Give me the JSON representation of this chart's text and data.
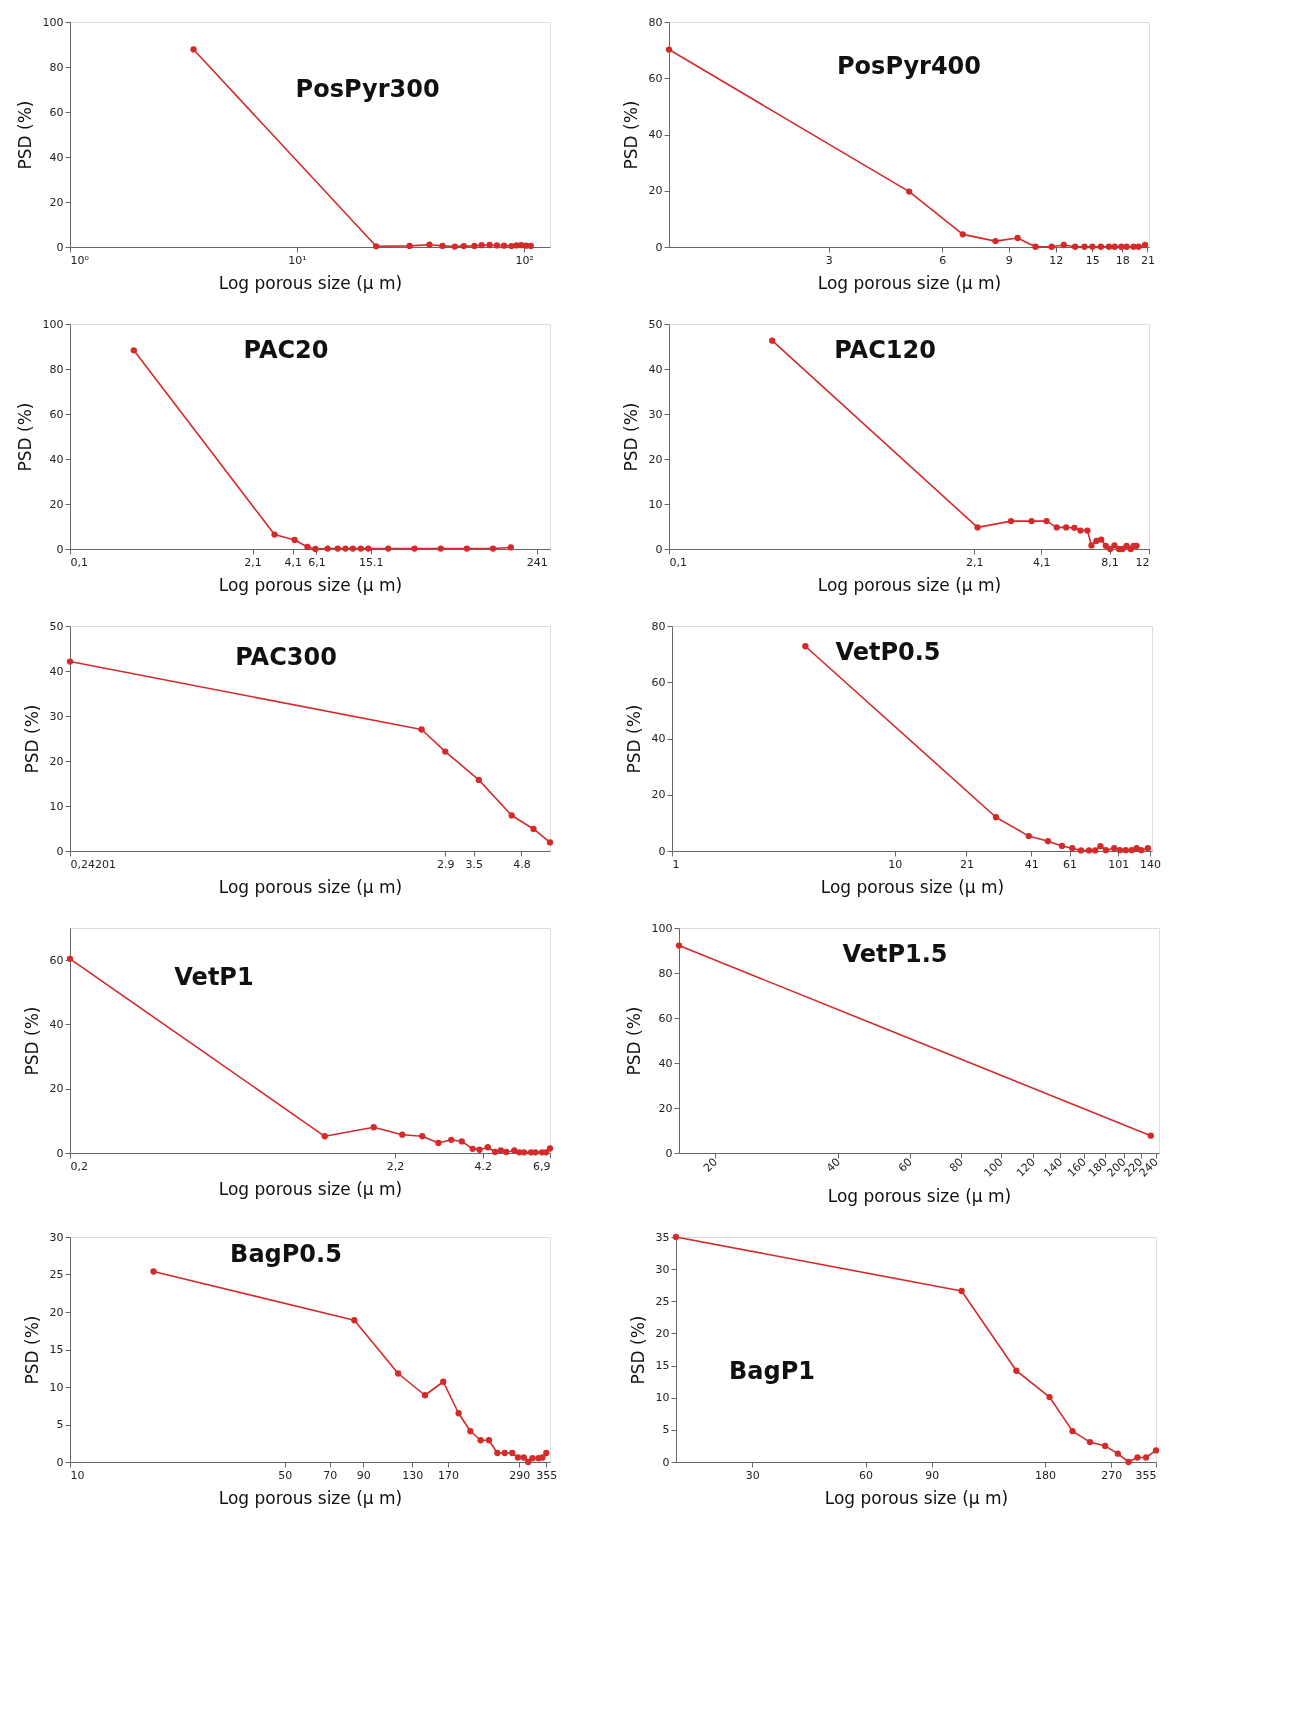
{
  "chart_data": [
    {
      "type": "line",
      "title": "PosPyr300",
      "xlabel": "Log porous size (μ m)",
      "ylabel": "PSD (%)",
      "log": "x",
      "marker": "circle",
      "xlim": [
        1,
        130
      ],
      "xticks": [
        {
          "value": 1,
          "label": "10⁰"
        },
        {
          "value": 10,
          "label": "10¹"
        },
        {
          "value": 100,
          "label": "10²"
        }
      ],
      "ylim": [
        0,
        100
      ],
      "yticks": [
        0,
        20,
        40,
        60,
        80,
        100
      ],
      "x": [
        3.5,
        22.3,
        31.3,
        38.3,
        43.7,
        49.5,
        54.2,
        60.4,
        65,
        70.5,
        75.9,
        81.6,
        87.9,
        92.5,
        97,
        102,
        107
      ],
      "series": [
        {
          "color": "#d42a2a",
          "values": [
            87.8,
            0.3,
            0.5,
            1.0,
            0.5,
            0.2,
            0.4,
            0.5,
            0.8,
            0.9,
            0.7,
            0.6,
            0.4,
            0.7,
            0.8,
            0.6,
            0.5
          ]
        }
      ]
    },
    {
      "type": "line",
      "title": "PosPyr400",
      "xlabel": "Log porous size (μ m)",
      "ylabel": "PSD (%)",
      "log": "x",
      "marker": "circle",
      "xlim": [
        1.13,
        21.2
      ],
      "xticks": [
        3,
        6,
        9,
        12,
        15,
        18,
        21
      ],
      "ylim": [
        0,
        80
      ],
      "yticks": [
        0,
        20,
        40,
        60,
        80
      ],
      "x": [
        1.13,
        4.9,
        6.8,
        8.3,
        9.5,
        10.6,
        11.7,
        12.6,
        13.5,
        14.3,
        15.0,
        15.8,
        16.6,
        17.2,
        17.9,
        18.5,
        19.3,
        19.9,
        20.7
      ],
      "series": [
        {
          "color": "#d42a2a",
          "values": [
            70.2,
            19.7,
            4.5,
            2.1,
            3.2,
            0.1,
            0.1,
            0.7,
            0.1,
            0.1,
            0.1,
            0.1,
            0.1,
            0.1,
            0.1,
            0.1,
            0.1,
            0.1,
            0.7
          ]
        }
      ]
    },
    {
      "type": "line",
      "title": "PAC20",
      "xlabel": "Log porous size (μ m)",
      "ylabel": "PSD (%)",
      "log": "x",
      "marker": "circle",
      "xlim": [
        0.1,
        300
      ],
      "xticks": [
        {
          "value": 0.1,
          "label": "0,1"
        },
        {
          "value": 2.1,
          "label": "2,1"
        },
        {
          "value": 4.1,
          "label": "4,1"
        },
        {
          "value": 6.1,
          "label": "6,1"
        },
        15.1,
        241
      ],
      "ylim": [
        0,
        100
      ],
      "yticks": [
        0,
        20,
        40,
        60,
        80,
        100
      ],
      "x": [
        0.29,
        3.03,
        4.24,
        5.25,
        6.0,
        7.35,
        8.7,
        9.9,
        11.2,
        12.8,
        14.5,
        20.2,
        31.3,
        48.5,
        75,
        116,
        156
      ],
      "series": [
        {
          "color": "#d42a2a",
          "values": [
            88.3,
            6.4,
            4.0,
            0.9,
            0.0,
            0.2,
            0.2,
            0.2,
            0.2,
            0.2,
            0.2,
            0.2,
            0.2,
            0.2,
            0.2,
            0.2,
            0.7
          ]
        }
      ]
    },
    {
      "type": "line",
      "title": "PAC120",
      "xlabel": "Log porous size (μ m)",
      "ylabel": "PSD (%)",
      "log": "x",
      "marker": "circle",
      "xlim": [
        0.1,
        12
      ],
      "xticks": [
        {
          "value": 0.1,
          "label": "0,1"
        },
        {
          "value": 2.1,
          "label": "2,1"
        },
        {
          "value": 4.1,
          "label": "4,1"
        },
        {
          "value": 8.1,
          "label": "8,1"
        },
        12
      ],
      "ylim": [
        0,
        50
      ],
      "yticks": [
        0,
        10,
        20,
        30,
        40,
        50
      ],
      "x": [
        0.28,
        2.17,
        3.03,
        3.72,
        4.32,
        4.78,
        5.25,
        5.7,
        6.06,
        6.49,
        6.76,
        7.1,
        7.45,
        7.8,
        8.15,
        8.5,
        8.9,
        9.2,
        9.6,
        10.0,
        10.3,
        10.6
      ],
      "series": [
        {
          "color": "#d42a2a",
          "values": [
            46.3,
            4.8,
            6.2,
            6.2,
            6.2,
            4.8,
            4.8,
            4.7,
            4.1,
            4.1,
            0.8,
            1.8,
            2.1,
            0.7,
            0.0,
            0.8,
            0.0,
            0.0,
            0.7,
            0.0,
            0.7,
            0.7
          ]
        }
      ]
    },
    {
      "type": "line",
      "title": "PAC300",
      "xlabel": "Log porous size (μ m)",
      "ylabel": "PSD (%)",
      "log": "x",
      "marker": "circle",
      "xlim": [
        0.24201,
        5.8
      ],
      "xticks": [
        {
          "value": 0.24201,
          "label": "0,24201"
        },
        2.9,
        3.5,
        4.8
      ],
      "ylim": [
        0,
        50
      ],
      "yticks": [
        0,
        10,
        20,
        30,
        40,
        50
      ],
      "x": [
        0.24201,
        2.48,
        2.9,
        3.62,
        4.5,
        5.2,
        5.8
      ],
      "series": [
        {
          "color": "#d42a2a",
          "values": [
            42.1,
            27.0,
            22.1,
            15.8,
            7.9,
            4.9,
            1.9
          ]
        }
      ]
    },
    {
      "type": "line",
      "title": "VetP0.5",
      "xlabel": "Log porous size (μ m)",
      "ylabel": "PSD (%)",
      "log": "x",
      "marker": "circle",
      "xlim": [
        1,
        143
      ],
      "xticks": [
        1,
        10,
        21,
        41,
        61,
        101,
        140
      ],
      "ylim": [
        0,
        80
      ],
      "yticks": [
        0,
        20,
        40,
        60,
        80
      ],
      "x": [
        3.97,
        28.5,
        40,
        48.8,
        56.4,
        62.7,
        68.6,
        74.6,
        79.5,
        83.9,
        88.8,
        96.7,
        102.6,
        109,
        116,
        122,
        128,
        137
      ],
      "series": [
        {
          "color": "#d42a2a",
          "values": [
            72.8,
            12.0,
            5.3,
            3.5,
            1.8,
            1.0,
            0.2,
            0.2,
            0.2,
            1.7,
            0.3,
            1.0,
            0.3,
            0.3,
            0.3,
            1.0,
            0.3,
            1.0
          ]
        }
      ]
    },
    {
      "type": "line",
      "title": "VetP1",
      "xlabel": "Log porous size (μ m)",
      "ylabel": "PSD (%)",
      "log": "x",
      "marker": "circle",
      "xlim": [
        0.2,
        6.9
      ],
      "xticks": [
        {
          "value": 0.2,
          "label": "0,2"
        },
        {
          "value": 2.2,
          "label": "2,2"
        },
        4.2,
        {
          "value": 6.9,
          "label": "6,9"
        }
      ],
      "ylim": [
        0,
        70
      ],
      "yticks": [
        0,
        20,
        40,
        60
      ],
      "x": [
        0.2,
        1.31,
        1.88,
        2.32,
        2.69,
        3.03,
        3.33,
        3.6,
        3.9,
        4.1,
        4.36,
        4.6,
        4.8,
        5.0,
        5.3,
        5.5,
        5.7,
        6.0,
        6.2,
        6.5,
        6.7,
        6.9
      ],
      "series": [
        {
          "color": "#d42a2a",
          "values": [
            60.4,
            5.2,
            8.0,
            5.7,
            5.2,
            3.1,
            4.1,
            3.6,
            1.3,
            1.0,
            1.8,
            0.3,
            0.8,
            0.3,
            0.8,
            0.2,
            0.2,
            0.2,
            0.2,
            0.2,
            0.2,
            1.4
          ]
        }
      ]
    },
    {
      "type": "line",
      "title": "VetP1.5",
      "xlabel": "Log porous size (μ m)",
      "ylabel": "PSD (%)",
      "log": "x",
      "marker": "circle",
      "xlim": [
        16.3,
        244
      ],
      "xticks": [
        20,
        40,
        60,
        80,
        100,
        120,
        140,
        160,
        180,
        200,
        220,
        240
      ],
      "ylim": [
        0,
        100
      ],
      "yticks": [
        0,
        20,
        40,
        60,
        80,
        100
      ],
      "x": [
        16.3,
        233
      ],
      "series": [
        {
          "color": "#d42a2a",
          "values": [
            92.2,
            7.7
          ]
        }
      ]
    },
    {
      "type": "line",
      "title": "BagP0.5",
      "xlabel": "Log porous size (μ m)",
      "ylabel": "PSD (%)",
      "log": "x",
      "marker": "circle",
      "xlim": [
        10,
        365
      ],
      "xticks": [
        10,
        50,
        70,
        90,
        130,
        170,
        290,
        355
      ],
      "ylim": [
        0,
        30
      ],
      "yticks": [
        0,
        5,
        10,
        15,
        20,
        25,
        30
      ],
      "x": [
        18.7,
        84.2,
        117,
        143,
        164,
        184,
        201,
        217,
        231,
        246,
        260,
        275,
        287,
        300,
        310,
        320,
        335,
        345,
        355
      ],
      "series": [
        {
          "color": "#d42a2a",
          "values": [
            25.4,
            18.9,
            11.8,
            8.9,
            10.7,
            6.5,
            4.1,
            2.9,
            2.9,
            1.2,
            1.2,
            1.2,
            0.6,
            0.6,
            0.0,
            0.5,
            0.5,
            0.6,
            1.2
          ]
        }
      ]
    },
    {
      "type": "line",
      "title": "BagP1",
      "xlabel": "Log porous size (μ m)",
      "ylabel": "PSD (%)",
      "log": "x",
      "marker": "circle",
      "xlim": [
        18.8,
        355
      ],
      "xticks": [
        30,
        60,
        90,
        180,
        270,
        355
      ],
      "ylim": [
        0,
        35
      ],
      "yticks": [
        0,
        5,
        10,
        15,
        20,
        25,
        30,
        35
      ],
      "x": [
        18.8,
        108,
        151,
        185,
        213,
        237,
        260,
        281,
        300,
        317,
        334,
        355
      ],
      "series": [
        {
          "color": "#d42a2a",
          "values": [
            35.0,
            26.6,
            14.2,
            10.1,
            4.8,
            3.1,
            2.5,
            1.3,
            0.0,
            0.7,
            0.7,
            1.8
          ]
        }
      ]
    }
  ]
}
